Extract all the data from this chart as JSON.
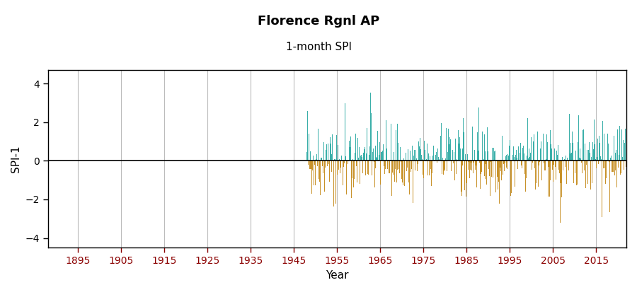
{
  "title": "Florence Rgnl AP",
  "subtitle": "1-month SPI",
  "xlabel": "Year",
  "ylabel": "SPI-1",
  "xlim": [
    1888,
    2022
  ],
  "ylim": [
    -4.5,
    4.7
  ],
  "yticks": [
    -4,
    -2,
    0,
    2,
    4
  ],
  "xticks": [
    1895,
    1905,
    1915,
    1925,
    1935,
    1945,
    1955,
    1965,
    1975,
    1985,
    1995,
    2005,
    2015
  ],
  "data_start_year": 1948,
  "data_end_year": 2021,
  "color_positive": "#3aafa9",
  "color_negative": "#c8922a",
  "background_color": "#ffffff",
  "grid_color": "#bbbbbb",
  "title_fontsize": 13,
  "subtitle_fontsize": 11,
  "label_fontsize": 11,
  "tick_fontsize": 10,
  "tick_color": "#8B0000",
  "seed": 42
}
